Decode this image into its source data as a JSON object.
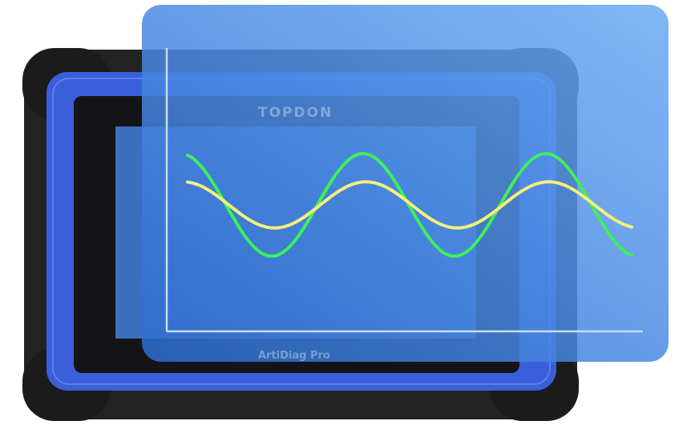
{
  "device": {
    "brand": "TOPDON",
    "model": "ArtiDiag Pro",
    "shell_color": "#222222",
    "frame_color": "#3a5fd9",
    "screen_color": "#141418"
  },
  "overlay": {
    "panel_color": "#4f8ee6",
    "axis_color": "#c9dcf5"
  },
  "waveforms": [
    {
      "color": "#3df05a",
      "shape": "sine",
      "relative_amplitude": 1.0
    },
    {
      "color": "#f4f07a",
      "shape": "sine",
      "relative_amplitude": 0.45
    }
  ]
}
